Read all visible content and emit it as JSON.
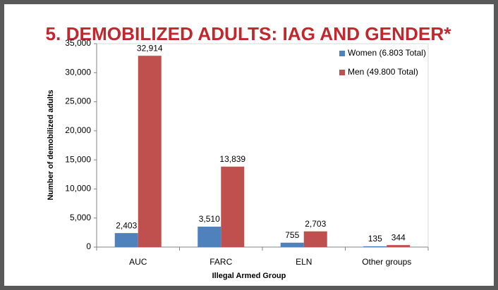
{
  "chart_data": {
    "type": "bar",
    "title": "5. DEMOBILIZED ADULTS: IAG AND GENDER*",
    "x_label": "Illegal Armed Group",
    "y_label": "Number of demobilized adults",
    "categories": [
      "AUC",
      "FARC",
      "ELN",
      "Other groups"
    ],
    "series": [
      {
        "name": "Women (6.803 Total)",
        "color": "#4f81bd",
        "values": [
          2403,
          3510,
          755,
          135
        ],
        "value_labels": [
          "2,403",
          "3,510",
          "755",
          "135"
        ]
      },
      {
        "name": "Men (49.800 Total)",
        "color": "#c0504d",
        "values": [
          32914,
          13839,
          2703,
          344
        ],
        "value_labels": [
          "32,914",
          "13,839",
          "2,703",
          "344"
        ]
      }
    ],
    "ylim": [
      0,
      35000
    ],
    "yticks": [
      0,
      {
        "value": 5000,
        "label": "5,000"
      },
      {
        "value": 10000,
        "label": "10,000"
      },
      {
        "value": 15000,
        "label": "15,000"
      },
      {
        "value": 20000,
        "label": "20,000"
      },
      {
        "value": 25000,
        "label": "25,000"
      },
      {
        "value": 30000,
        "label": "30,000"
      },
      {
        "value": 35000,
        "label": "35,000"
      }
    ],
    "grid": false,
    "legend": "upper right"
  }
}
